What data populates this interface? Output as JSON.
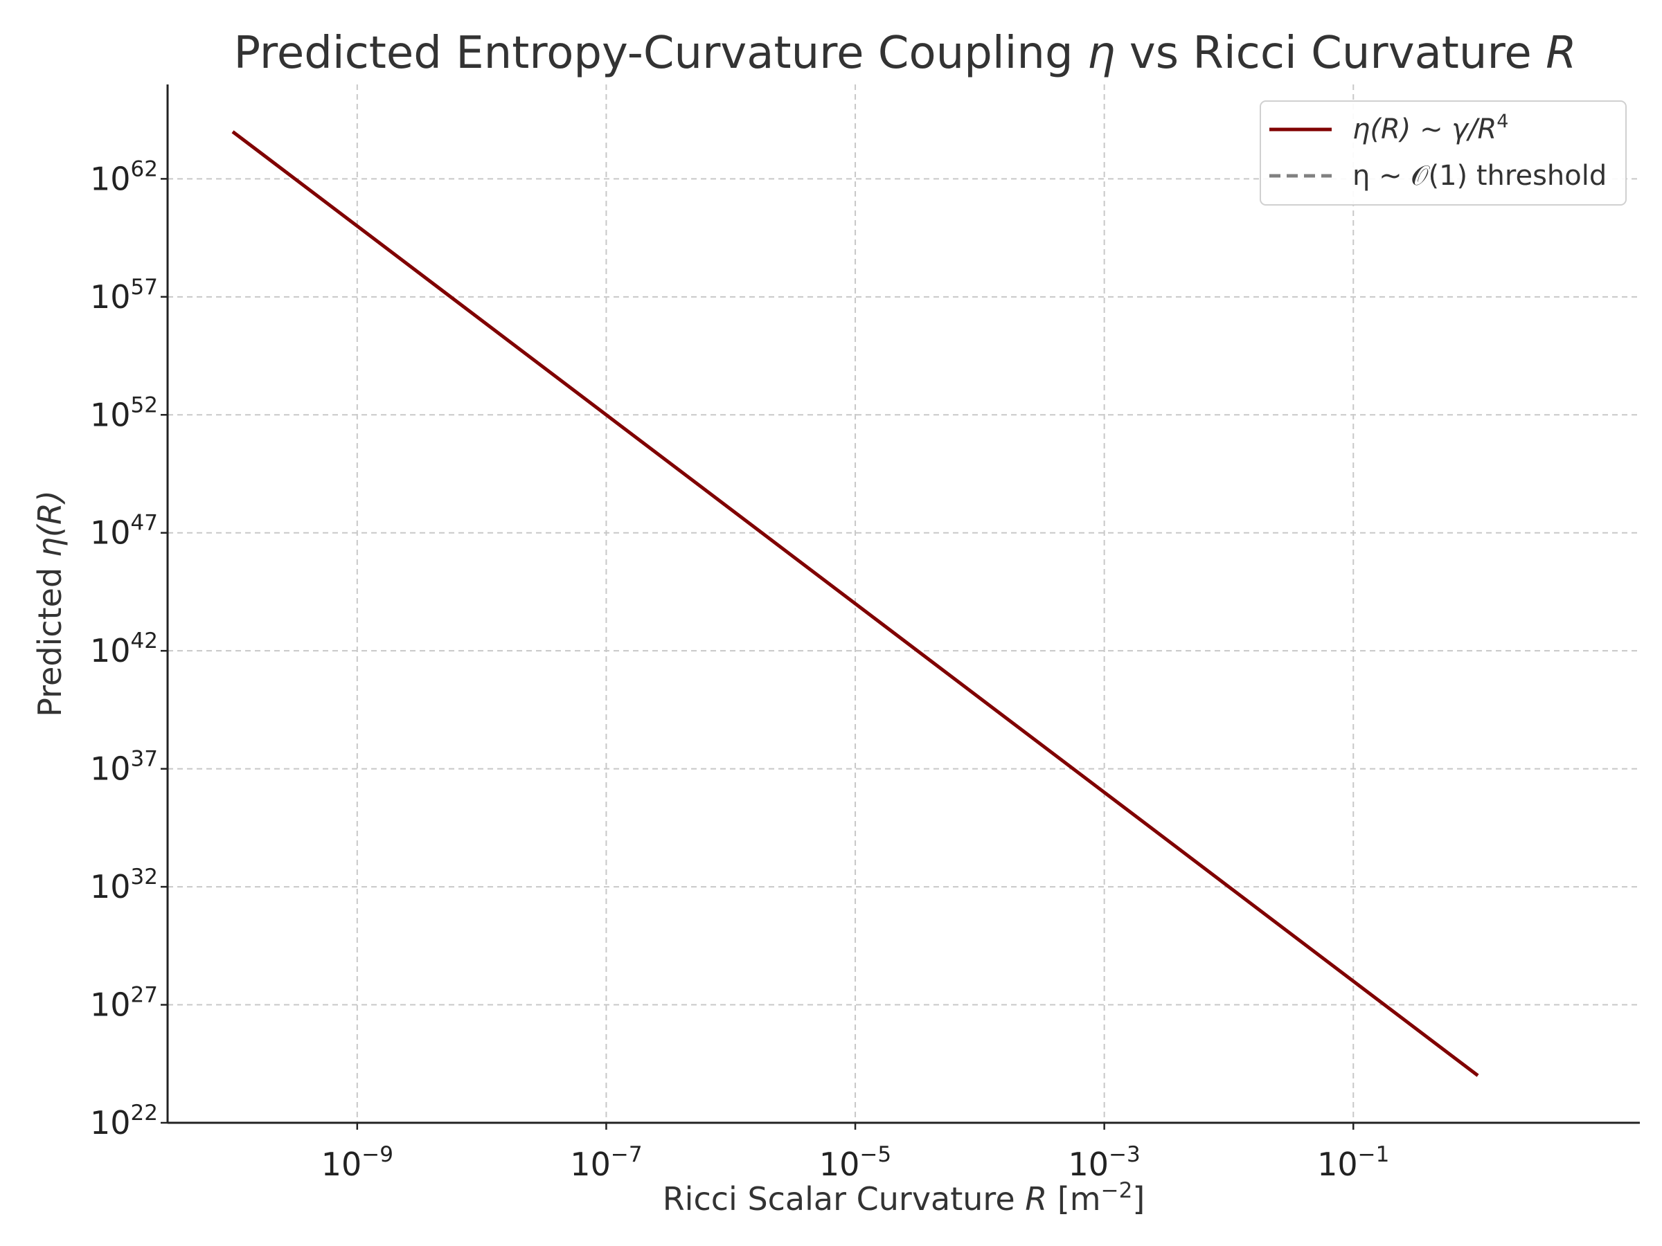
{
  "chart_data": {
    "type": "line",
    "title": {
      "prefix": "Predicted Entropy-Curvature Coupling ",
      "eta": "η",
      "middle": " vs Ricci Curvature ",
      "r": "R"
    },
    "xlabel": {
      "prefix": "Ricci Scalar Curvature ",
      "r": "R",
      "unit_open": " [m",
      "unit_exp": "−2",
      "unit_close": "]"
    },
    "ylabel": {
      "prefix": "Predicted ",
      "eta": "η",
      "arg": "(R)"
    },
    "x_scale": "log",
    "y_scale": "log",
    "xlim": [
      3e-11,
      20
    ],
    "ylim": [
      1e+22,
      1e+66
    ],
    "x_ticks": [
      {
        "value": 1e-09,
        "base": "10",
        "exp": "−9"
      },
      {
        "value": 1e-07,
        "base": "10",
        "exp": "−7"
      },
      {
        "value": 1e-05,
        "base": "10",
        "exp": "−5"
      },
      {
        "value": 0.001,
        "base": "10",
        "exp": "−3"
      },
      {
        "value": 0.1,
        "base": "10",
        "exp": "−1"
      }
    ],
    "y_ticks": [
      {
        "value": 1e+22,
        "base": "10",
        "exp": "22"
      },
      {
        "value": 1e+27,
        "base": "10",
        "exp": "27"
      },
      {
        "value": 1e+32,
        "base": "10",
        "exp": "32"
      },
      {
        "value": 1e+37,
        "base": "10",
        "exp": "37"
      },
      {
        "value": 1e+42,
        "base": "10",
        "exp": "42"
      },
      {
        "value": 1e+47,
        "base": "10",
        "exp": "47"
      },
      {
        "value": 1e+52,
        "base": "10",
        "exp": "52"
      },
      {
        "value": 1e+57,
        "base": "10",
        "exp": "57"
      },
      {
        "value": 1e+62,
        "base": "10",
        "exp": "62"
      }
    ],
    "grid": true,
    "legend_position": "top-right",
    "series": [
      {
        "name": "η(R) ~ γ/R⁴",
        "legend": {
          "prefix": "η(R) ~ γ/R",
          "exp": "4"
        },
        "color": "#800000",
        "style": "solid",
        "x": [
          1e-10,
          1e-09,
          1e-08,
          1e-07,
          1e-06,
          1e-05,
          0.0001,
          0.001,
          0.01,
          0.1,
          1
        ],
        "y": [
          1e+64,
          1e+60,
          1e+56,
          1e+52,
          1e+48,
          1e+44,
          1e+40,
          1e+36,
          1e+32,
          1e+28,
          1e+24
        ]
      },
      {
        "name": "η ~ 𝒪(1) threshold",
        "legend": {
          "prefix": "η ~ 𝒪(1) threshold",
          "exp": ""
        },
        "color": "#808080",
        "style": "dashed",
        "x": [],
        "y": []
      }
    ]
  }
}
